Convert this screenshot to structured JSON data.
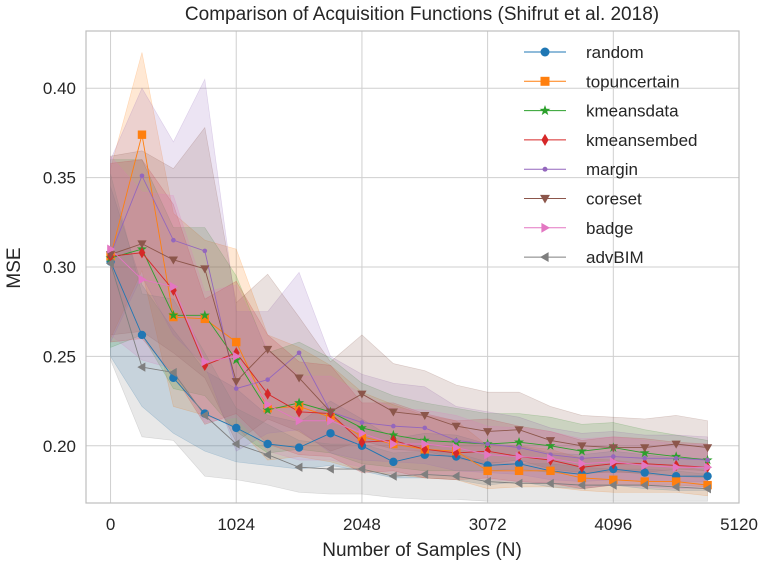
{
  "chart_data": {
    "type": "line",
    "title": "Comparison of Acquisition Functions (Shifrut et al. 2018)",
    "xlabel": "Number of Samples (N)",
    "ylabel": "MSE",
    "xlim": [
      -200,
      5120
    ],
    "ylim": [
      0.168,
      0.432
    ],
    "xticks": [
      0,
      1024,
      2048,
      3072,
      4096,
      5120
    ],
    "yticks": [
      0.2,
      0.25,
      0.3,
      0.35,
      0.4
    ],
    "xtick_labels": [
      "0",
      "1024",
      "2048",
      "3072",
      "4096",
      "5120"
    ],
    "ytick_labels": [
      "0.20",
      "0.25",
      "0.30",
      "0.35",
      "0.40"
    ],
    "grid": true,
    "legend_position": "top-right",
    "x": [
      0,
      256,
      512,
      768,
      1024,
      1280,
      1536,
      1792,
      2048,
      2304,
      2560,
      2816,
      3072,
      3328,
      3584,
      3840,
      4096,
      4352,
      4608,
      4864
    ],
    "series": [
      {
        "name": "random",
        "color": "#1f77b4",
        "marker": "circle",
        "values": [
          0.303,
          0.262,
          0.238,
          0.218,
          0.21,
          0.201,
          0.199,
          0.207,
          0.2,
          0.191,
          0.195,
          0.194,
          0.189,
          0.19,
          0.186,
          0.184,
          0.187,
          0.185,
          0.183,
          0.183
        ],
        "lower": [
          0.25,
          0.222,
          0.207,
          0.197,
          0.191,
          0.189,
          0.187,
          0.189,
          0.186,
          0.182,
          0.182,
          0.181,
          0.178,
          0.18,
          0.177,
          0.176,
          0.178,
          0.176,
          0.175,
          0.175
        ],
        "upper": [
          0.345,
          0.29,
          0.265,
          0.242,
          0.232,
          0.217,
          0.213,
          0.225,
          0.215,
          0.204,
          0.207,
          0.206,
          0.201,
          0.2,
          0.196,
          0.195,
          0.197,
          0.195,
          0.193,
          0.193
        ]
      },
      {
        "name": "topuncertain",
        "color": "#ff7f0e",
        "marker": "square",
        "values": [
          0.306,
          0.374,
          0.272,
          0.271,
          0.258,
          0.221,
          0.222,
          0.216,
          0.205,
          0.201,
          0.198,
          0.197,
          0.186,
          0.186,
          0.186,
          0.182,
          0.181,
          0.18,
          0.18,
          0.178
        ],
        "lower": [
          0.26,
          0.298,
          0.222,
          0.217,
          0.211,
          0.192,
          0.194,
          0.191,
          0.186,
          0.184,
          0.182,
          0.181,
          0.176,
          0.177,
          0.177,
          0.175,
          0.174,
          0.174,
          0.174,
          0.172
        ],
        "upper": [
          0.355,
          0.42,
          0.33,
          0.315,
          0.31,
          0.262,
          0.255,
          0.245,
          0.23,
          0.223,
          0.217,
          0.214,
          0.2,
          0.2,
          0.198,
          0.193,
          0.192,
          0.19,
          0.189,
          0.186
        ]
      },
      {
        "name": "kmeansdata",
        "color": "#2ca02c",
        "marker": "star",
        "values": [
          0.305,
          0.31,
          0.273,
          0.273,
          0.248,
          0.22,
          0.224,
          0.219,
          0.21,
          0.206,
          0.203,
          0.202,
          0.201,
          0.202,
          0.2,
          0.197,
          0.199,
          0.196,
          0.194,
          0.192
        ],
        "lower": [
          0.255,
          0.262,
          0.232,
          0.228,
          0.208,
          0.196,
          0.198,
          0.196,
          0.19,
          0.188,
          0.186,
          0.186,
          0.186,
          0.187,
          0.185,
          0.184,
          0.186,
          0.184,
          0.183,
          0.182
        ],
        "upper": [
          0.36,
          0.36,
          0.322,
          0.322,
          0.295,
          0.252,
          0.258,
          0.249,
          0.235,
          0.228,
          0.224,
          0.221,
          0.218,
          0.218,
          0.216,
          0.212,
          0.213,
          0.209,
          0.206,
          0.203
        ]
      },
      {
        "name": "kmeansembed",
        "color": "#d62728",
        "marker": "diamond",
        "values": [
          0.306,
          0.308,
          0.287,
          0.245,
          0.252,
          0.229,
          0.219,
          0.218,
          0.202,
          0.203,
          0.198,
          0.196,
          0.197,
          0.194,
          0.192,
          0.188,
          0.19,
          0.19,
          0.189,
          0.188
        ],
        "lower": [
          0.258,
          0.26,
          0.24,
          0.212,
          0.218,
          0.201,
          0.195,
          0.194,
          0.185,
          0.186,
          0.182,
          0.181,
          0.182,
          0.18,
          0.179,
          0.176,
          0.178,
          0.178,
          0.178,
          0.177
        ],
        "upper": [
          0.358,
          0.36,
          0.335,
          0.282,
          0.292,
          0.262,
          0.247,
          0.245,
          0.224,
          0.224,
          0.218,
          0.214,
          0.215,
          0.211,
          0.208,
          0.203,
          0.205,
          0.204,
          0.202,
          0.201
        ]
      },
      {
        "name": "margin",
        "color": "#9467bd",
        "marker": "dot",
        "values": [
          0.307,
          0.351,
          0.315,
          0.309,
          0.232,
          0.237,
          0.252,
          0.219,
          0.213,
          0.211,
          0.21,
          0.203,
          0.201,
          0.199,
          0.195,
          0.193,
          0.194,
          0.193,
          0.193,
          0.192
        ],
        "lower": [
          0.258,
          0.295,
          0.262,
          0.245,
          0.197,
          0.207,
          0.209,
          0.196,
          0.192,
          0.191,
          0.19,
          0.186,
          0.185,
          0.184,
          0.181,
          0.18,
          0.181,
          0.18,
          0.18,
          0.18
        ],
        "upper": [
          0.36,
          0.4,
          0.37,
          0.405,
          0.275,
          0.275,
          0.297,
          0.25,
          0.24,
          0.235,
          0.233,
          0.222,
          0.219,
          0.216,
          0.21,
          0.207,
          0.208,
          0.206,
          0.206,
          0.205
        ]
      },
      {
        "name": "coreset",
        "color": "#8c564b",
        "marker": "triangle-down",
        "values": [
          0.307,
          0.313,
          0.304,
          0.299,
          0.236,
          0.254,
          0.238,
          0.219,
          0.229,
          0.219,
          0.217,
          0.211,
          0.208,
          0.209,
          0.203,
          0.2,
          0.199,
          0.199,
          0.201,
          0.199
        ],
        "lower": [
          0.262,
          0.264,
          0.252,
          0.238,
          0.202,
          0.215,
          0.208,
          0.197,
          0.203,
          0.198,
          0.197,
          0.193,
          0.19,
          0.192,
          0.187,
          0.185,
          0.185,
          0.185,
          0.187,
          0.186
        ],
        "upper": [
          0.362,
          0.365,
          0.355,
          0.378,
          0.28,
          0.296,
          0.272,
          0.247,
          0.262,
          0.246,
          0.242,
          0.234,
          0.23,
          0.23,
          0.222,
          0.217,
          0.216,
          0.215,
          0.217,
          0.214
        ]
      },
      {
        "name": "badge",
        "color": "#e377c2",
        "marker": "triangle-right",
        "values": [
          0.31,
          0.293,
          0.289,
          0.247,
          0.25,
          0.223,
          0.214,
          0.214,
          0.207,
          0.201,
          0.201,
          0.199,
          0.195,
          0.194,
          0.193,
          0.19,
          0.191,
          0.189,
          0.188,
          0.188
        ],
        "lower": [
          0.262,
          0.248,
          0.243,
          0.213,
          0.216,
          0.197,
          0.192,
          0.192,
          0.188,
          0.184,
          0.184,
          0.183,
          0.181,
          0.18,
          0.179,
          0.177,
          0.178,
          0.177,
          0.176,
          0.176
        ],
        "upper": [
          0.362,
          0.342,
          0.34,
          0.286,
          0.29,
          0.254,
          0.239,
          0.239,
          0.229,
          0.221,
          0.22,
          0.217,
          0.211,
          0.21,
          0.208,
          0.204,
          0.205,
          0.203,
          0.201,
          0.201
        ]
      },
      {
        "name": "advBIM",
        "color": "#7f7f7f",
        "marker": "triangle-left",
        "values": [
          0.302,
          0.244,
          0.241,
          0.217,
          0.201,
          0.195,
          0.188,
          0.187,
          0.187,
          0.183,
          0.184,
          0.183,
          0.18,
          0.179,
          0.179,
          0.178,
          0.178,
          0.178,
          0.177,
          0.176
        ],
        "lower": [
          0.248,
          0.205,
          0.203,
          0.183,
          0.181,
          0.178,
          0.174,
          0.173,
          0.173,
          0.171,
          0.17,
          0.17,
          0.169,
          0.169,
          0.169,
          0.169,
          0.169,
          0.169,
          0.169,
          0.169
        ],
        "upper": [
          0.352,
          0.285,
          0.282,
          0.252,
          0.221,
          0.212,
          0.203,
          0.201,
          0.201,
          0.196,
          0.197,
          0.196,
          0.191,
          0.19,
          0.19,
          0.188,
          0.187,
          0.187,
          0.186,
          0.184
        ]
      }
    ]
  }
}
